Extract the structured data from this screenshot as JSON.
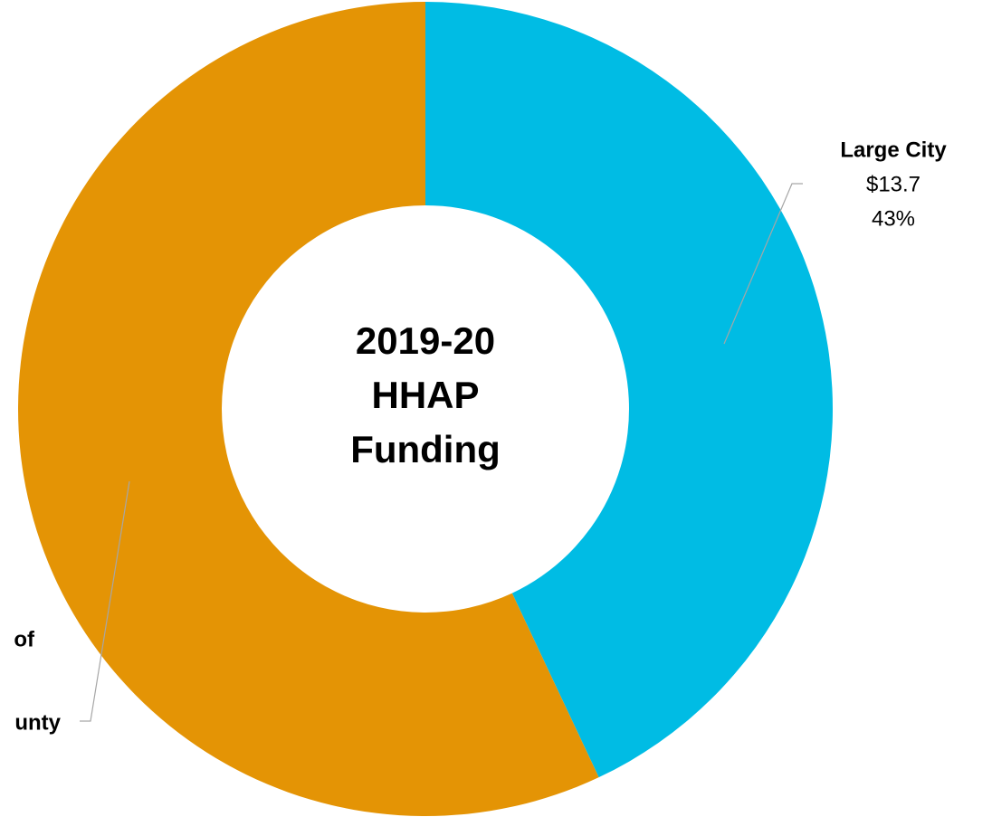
{
  "chart_data": {
    "type": "donut",
    "center_title": [
      "2019-20",
      "HHAP",
      "Funding"
    ],
    "categories": [
      [
        "Large City"
      ],
      [
        "of",
        "unty"
      ]
    ],
    "values": [
      43,
      57
    ],
    "value_labels": [
      "43%",
      null
    ],
    "amount_labels": [
      "$13.7",
      null
    ],
    "colors": [
      "#00bce4",
      "#e49405"
    ]
  }
}
